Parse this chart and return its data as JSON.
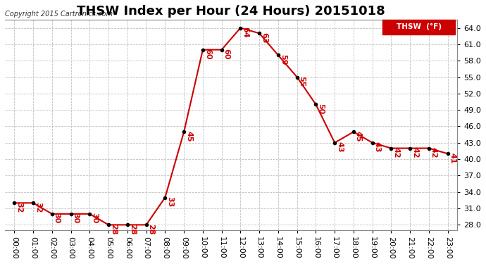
{
  "title": "THSW Index per Hour (24 Hours) 20151018",
  "copyright": "Copyright 2015 Cartronics.com",
  "legend_label": "THSW  (°F)",
  "hours": [
    0,
    1,
    2,
    3,
    4,
    5,
    6,
    7,
    8,
    9,
    10,
    11,
    12,
    13,
    14,
    15,
    16,
    17,
    18,
    19,
    20,
    21,
    22,
    23
  ],
  "values": [
    32,
    32,
    30,
    30,
    30,
    28,
    28,
    28,
    33,
    45,
    60,
    60,
    64,
    63,
    59,
    55,
    50,
    43,
    45,
    43,
    42,
    42,
    42,
    41
  ],
  "ylim": [
    27.0,
    65.5
  ],
  "yticks": [
    28.0,
    31.0,
    34.0,
    37.0,
    40.0,
    43.0,
    46.0,
    49.0,
    52.0,
    55.0,
    58.0,
    61.0,
    64.0
  ],
  "line_color": "#cc0000",
  "marker_color": "#000000",
  "bg_color": "#ffffff",
  "grid_color": "#c0c0c0",
  "title_fontsize": 13,
  "label_fontsize": 8,
  "annotation_fontsize": 8,
  "legend_bg": "#cc0000",
  "legend_fg": "#ffffff"
}
